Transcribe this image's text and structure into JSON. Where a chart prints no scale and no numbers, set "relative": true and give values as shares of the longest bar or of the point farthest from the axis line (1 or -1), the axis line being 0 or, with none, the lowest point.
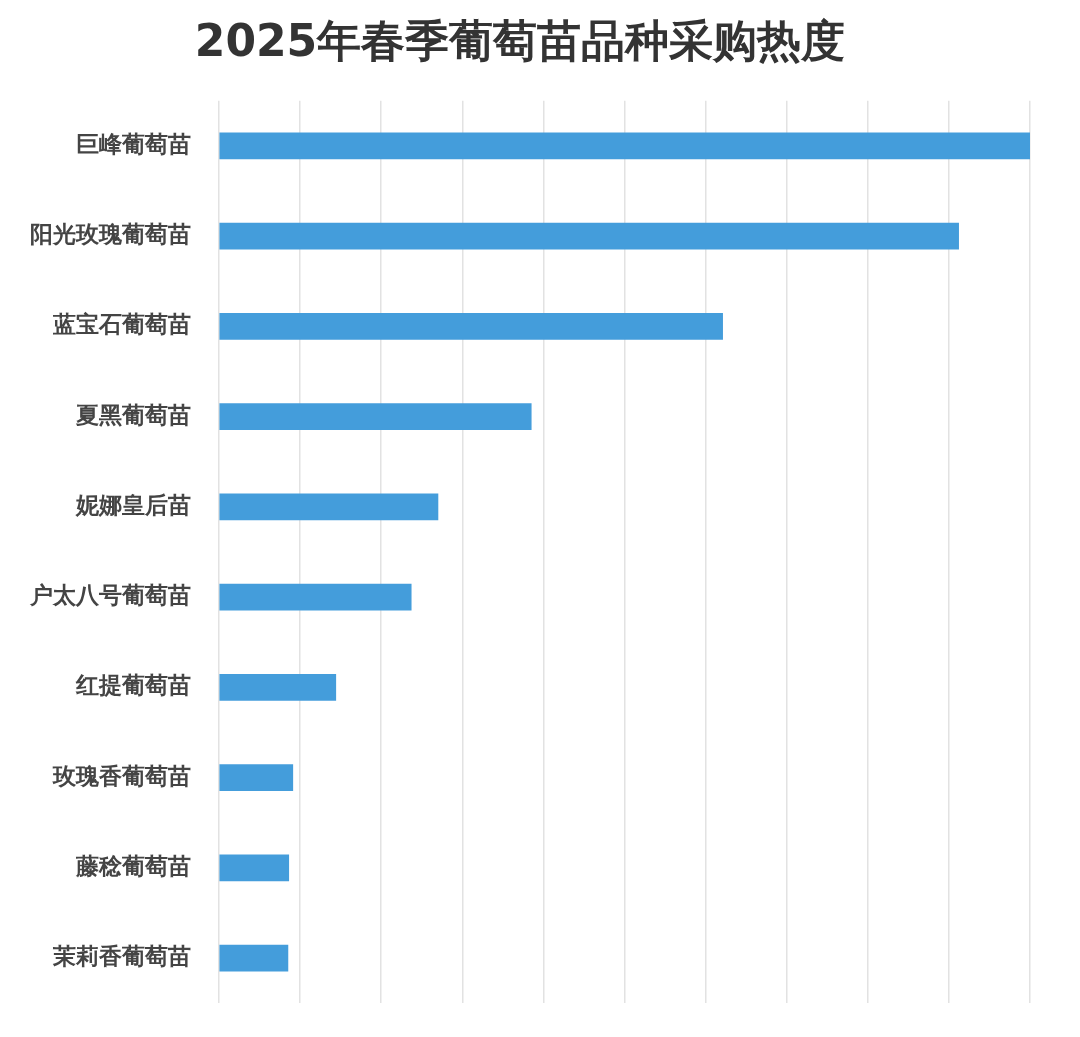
{
  "chart_data": {
    "type": "bar",
    "orientation": "horizontal",
    "relative": true,
    "grid": "x",
    "title": "2025年春季葡萄苗品种采购热度",
    "categories": [
      "巨峰葡萄苗",
      "阳光玫瑰葡萄苗",
      "蓝宝石葡萄苗",
      "夏黑葡萄苗",
      "妮娜皇后苗",
      "户太八号葡萄苗",
      "红提葡萄苗",
      "玫瑰香葡萄苗",
      "藤稔葡萄苗",
      "茉莉香葡萄苗"
    ],
    "values": [
      1,
      0.912,
      0.621,
      0.385,
      0.27,
      0.237,
      0.144,
      0.091,
      0.086,
      0.085
    ],
    "color": "#449ddb"
  }
}
